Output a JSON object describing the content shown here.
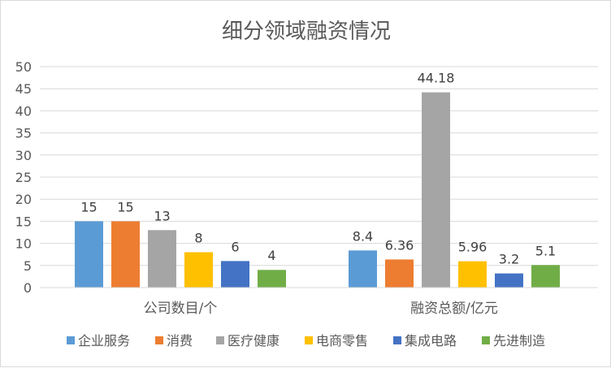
{
  "chart_data": {
    "type": "bar",
    "title": "细分领域融资情况",
    "categories": [
      "公司数目/个",
      "融资总额/亿元"
    ],
    "series": [
      {
        "name": "企业服务",
        "color": "#5B9BD5",
        "values": [
          15,
          8.4
        ]
      },
      {
        "name": "消费",
        "color": "#ED7D31",
        "values": [
          15,
          6.36
        ]
      },
      {
        "name": "医疗健康",
        "color": "#A5A5A5",
        "values": [
          13,
          44.18
        ]
      },
      {
        "name": "电商零售",
        "color": "#FFC000",
        "values": [
          8,
          5.96
        ]
      },
      {
        "name": "集成电路",
        "color": "#4472C4",
        "values": [
          6,
          3.2
        ]
      },
      {
        "name": "先进制造",
        "color": "#70AD47",
        "values": [
          4,
          5.1
        ]
      }
    ],
    "data_labels": [
      [
        "15",
        "8.4"
      ],
      [
        "15",
        "6.36"
      ],
      [
        "13",
        "44.18"
      ],
      [
        "8",
        "5.96"
      ],
      [
        "6",
        "3.2"
      ],
      [
        "4",
        "5.1"
      ]
    ],
    "ylim": [
      0,
      50
    ],
    "yticks": [
      0,
      5,
      10,
      15,
      20,
      25,
      30,
      35,
      40,
      45,
      50
    ],
    "xlabel": "",
    "ylabel": "",
    "grid": true,
    "legend": "bottom"
  }
}
